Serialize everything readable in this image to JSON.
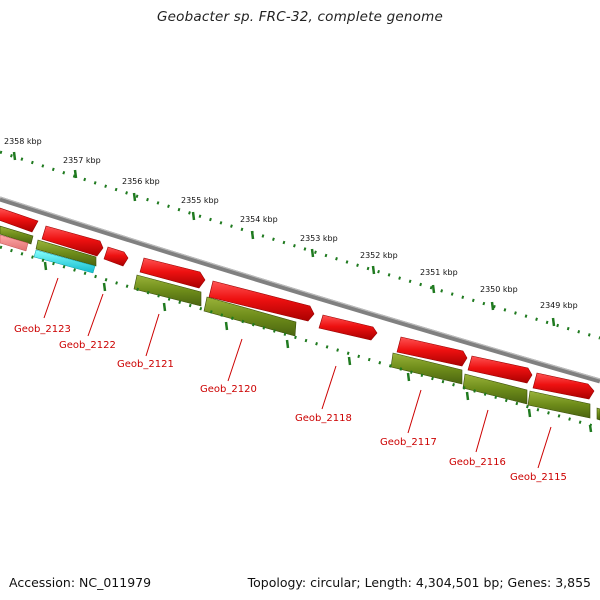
{
  "title": "Geobacter sp. FRC-32, complete genome",
  "footer": {
    "accession": "Accession: NC_011979",
    "summary": "Topology: circular; Length: 4,304,501 bp; Genes: 3,855"
  },
  "colors": {
    "forward_gene": "#ee1111",
    "reverse_gene": "#6e8c1a",
    "pseudo_gene_a": "#f08080",
    "pseudo_gene_b": "#22dddd",
    "backbone": "#888888",
    "tick": "#1f7a1f",
    "label": "#cc0000"
  },
  "scale_labels": [
    "2358 kbp",
    "2357 kbp",
    "2356 kbp",
    "2355 kbp",
    "2354 kbp",
    "2353 kbp",
    "2352 kbp",
    "2351 kbp",
    "2350 kbp",
    "2349 kbp"
  ],
  "gene_labels": [
    "Geob_2123",
    "Geob_2122",
    "Geob_2121",
    "Geob_2120",
    "Geob_2118",
    "Geob_2117",
    "Geob_2116",
    "Geob_2115"
  ]
}
